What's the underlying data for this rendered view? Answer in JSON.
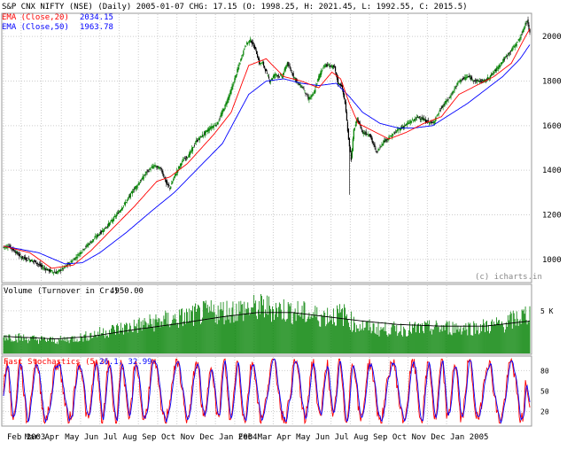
{
  "chart_data": {
    "type": "line",
    "header": {
      "title": "S&P CNX NIFTY (NSE) (Daily) 2005-01-07 CHG: 17.15 (O: 1998.25, H: 2021.45, L: 1992.55, C: 2015.5)",
      "ema20_label": "EMA (Close,20)",
      "ema20_value": "2034.15",
      "ema50_label": "EMA (Close,50)",
      "ema50_value": "1963.78"
    },
    "watermark": "(c) icharts.in",
    "colors": {
      "up": "#008000",
      "down": "#000000",
      "ema20": "#ff0000",
      "ema50": "#0000ff",
      "volume": "#008000",
      "volume_avg": "#000000",
      "stoch_k": "#ff0000",
      "stoch_d": "#0000ff",
      "grid": "#cccccc",
      "label_red": "#ff0000",
      "label_blue": "#0000ff"
    },
    "price": {
      "ylim": [
        900,
        2100
      ],
      "ticks": [
        "2000",
        "1800",
        "1600",
        "1400",
        "1200",
        "1000"
      ],
      "tick_values": [
        2000,
        1800,
        1600,
        1400,
        1200,
        1000
      ],
      "anchors_close": [
        [
          0,
          1055
        ],
        [
          6,
          1060
        ],
        [
          12,
          1040
        ],
        [
          20,
          1010
        ],
        [
          28,
          1000
        ],
        [
          36,
          990
        ],
        [
          44,
          965
        ],
        [
          52,
          950
        ],
        [
          60,
          940
        ],
        [
          68,
          960
        ],
        [
          76,
          985
        ],
        [
          84,
          1015
        ],
        [
          92,
          1050
        ],
        [
          100,
          1080
        ],
        [
          108,
          1110
        ],
        [
          116,
          1140
        ],
        [
          124,
          1175
        ],
        [
          132,
          1215
        ],
        [
          140,
          1260
        ],
        [
          148,
          1310
        ],
        [
          156,
          1350
        ],
        [
          164,
          1395
        ],
        [
          172,
          1420
        ],
        [
          180,
          1405
        ],
        [
          186,
          1340
        ],
        [
          190,
          1320
        ],
        [
          196,
          1380
        ],
        [
          204,
          1440
        ],
        [
          212,
          1470
        ],
        [
          220,
          1530
        ],
        [
          228,
          1560
        ],
        [
          236,
          1590
        ],
        [
          244,
          1610
        ],
        [
          252,
          1680
        ],
        [
          260,
          1760
        ],
        [
          268,
          1860
        ],
        [
          276,
          1960
        ],
        [
          282,
          1985
        ],
        [
          288,
          1940
        ],
        [
          292,
          1880
        ],
        [
          296,
          1880
        ],
        [
          300,
          1840
        ],
        [
          304,
          1800
        ],
        [
          310,
          1830
        ],
        [
          318,
          1820
        ],
        [
          324,
          1880
        ],
        [
          330,
          1830
        ],
        [
          336,
          1790
        ],
        [
          342,
          1770
        ],
        [
          348,
          1720
        ],
        [
          354,
          1740
        ],
        [
          360,
          1820
        ],
        [
          366,
          1870
        ],
        [
          372,
          1870
        ],
        [
          378,
          1860
        ],
        [
          382,
          1790
        ],
        [
          386,
          1780
        ],
        [
          390,
          1700
        ],
        [
          394,
          1540
        ],
        [
          397,
          1450
        ],
        [
          400,
          1580
        ],
        [
          404,
          1630
        ],
        [
          410,
          1570
        ],
        [
          418,
          1560
        ],
        [
          426,
          1480
        ],
        [
          434,
          1530
        ],
        [
          442,
          1550
        ],
        [
          450,
          1580
        ],
        [
          458,
          1600
        ],
        [
          466,
          1620
        ],
        [
          474,
          1640
        ],
        [
          482,
          1620
        ],
        [
          490,
          1610
        ],
        [
          500,
          1680
        ],
        [
          510,
          1730
        ],
        [
          520,
          1800
        ],
        [
          530,
          1820
        ],
        [
          540,
          1800
        ],
        [
          550,
          1800
        ],
        [
          560,
          1840
        ],
        [
          570,
          1890
        ],
        [
          578,
          1930
        ],
        [
          586,
          1970
        ],
        [
          592,
          2010
        ],
        [
          596,
          2060
        ],
        [
          598,
          2070
        ],
        [
          601,
          2015
        ]
      ],
      "anchors_ema20": [
        [
          0,
          1060
        ],
        [
          30,
          1030
        ],
        [
          55,
          960
        ],
        [
          80,
          975
        ],
        [
          100,
          1040
        ],
        [
          120,
          1120
        ],
        [
          150,
          1240
        ],
        [
          175,
          1350
        ],
        [
          190,
          1370
        ],
        [
          210,
          1430
        ],
        [
          240,
          1560
        ],
        [
          260,
          1660
        ],
        [
          280,
          1870
        ],
        [
          300,
          1900
        ],
        [
          320,
          1820
        ],
        [
          340,
          1800
        ],
        [
          360,
          1770
        ],
        [
          375,
          1840
        ],
        [
          385,
          1810
        ],
        [
          395,
          1700
        ],
        [
          405,
          1610
        ],
        [
          420,
          1580
        ],
        [
          440,
          1540
        ],
        [
          460,
          1570
        ],
        [
          480,
          1610
        ],
        [
          500,
          1640
        ],
        [
          520,
          1740
        ],
        [
          540,
          1780
        ],
        [
          560,
          1820
        ],
        [
          580,
          1880
        ],
        [
          596,
          2000
        ],
        [
          601,
          2034
        ]
      ],
      "anchors_ema50": [
        [
          0,
          1060
        ],
        [
          40,
          1030
        ],
        [
          70,
          980
        ],
        [
          90,
          985
        ],
        [
          110,
          1030
        ],
        [
          140,
          1120
        ],
        [
          170,
          1220
        ],
        [
          195,
          1300
        ],
        [
          220,
          1400
        ],
        [
          250,
          1520
        ],
        [
          280,
          1740
        ],
        [
          300,
          1800
        ],
        [
          320,
          1810
        ],
        [
          340,
          1790
        ],
        [
          360,
          1780
        ],
        [
          380,
          1790
        ],
        [
          395,
          1730
        ],
        [
          410,
          1660
        ],
        [
          430,
          1610
        ],
        [
          450,
          1590
        ],
        [
          470,
          1590
        ],
        [
          490,
          1600
        ],
        [
          510,
          1650
        ],
        [
          530,
          1700
        ],
        [
          550,
          1760
        ],
        [
          570,
          1820
        ],
        [
          590,
          1900
        ],
        [
          601,
          1963
        ]
      ]
    },
    "volume": {
      "label": "Volume (Turnover in Cr.)",
      "value": "4950.00",
      "ylim": [
        0,
        8
      ],
      "tick_label": "5 K",
      "tick_value": 5,
      "anchors": [
        [
          0,
          2.2
        ],
        [
          30,
          1.8
        ],
        [
          60,
          1.6
        ],
        [
          90,
          2.0
        ],
        [
          120,
          2.8
        ],
        [
          150,
          3.4
        ],
        [
          180,
          4.0
        ],
        [
          200,
          4.3
        ],
        [
          230,
          5.0
        ],
        [
          260,
          5.3
        ],
        [
          280,
          5.5
        ],
        [
          300,
          5.7
        ],
        [
          330,
          5.2
        ],
        [
          360,
          4.6
        ],
        [
          390,
          4.8
        ],
        [
          400,
          3.6
        ],
        [
          430,
          3.0
        ],
        [
          460,
          3.0
        ],
        [
          500,
          3.2
        ],
        [
          540,
          3.2
        ],
        [
          570,
          3.6
        ],
        [
          601,
          4.95
        ]
      ],
      "avg_anchors": [
        [
          0,
          2.0
        ],
        [
          60,
          1.7
        ],
        [
          100,
          2.0
        ],
        [
          150,
          2.8
        ],
        [
          200,
          3.5
        ],
        [
          250,
          4.3
        ],
        [
          290,
          4.8
        ],
        [
          330,
          4.8
        ],
        [
          370,
          4.3
        ],
        [
          410,
          3.8
        ],
        [
          450,
          3.4
        ],
        [
          500,
          3.2
        ],
        [
          550,
          3.2
        ],
        [
          601,
          3.8
        ]
      ]
    },
    "stochastic": {
      "label": "Fast Stochastics (5,3)",
      "values": "26.1, 32.99",
      "ylim": [
        0,
        100
      ],
      "ticks": [
        "80",
        "50",
        "20"
      ],
      "tick_values": [
        80,
        50,
        20
      ]
    },
    "x_axis": {
      "start": "2003-02-03",
      "end": "2005-01-07",
      "tick_labels": [
        "Feb 2003",
        "Mar",
        "Apr",
        "May",
        "Jun",
        "Jul",
        "Aug",
        "Sep",
        "Oct",
        "Nov",
        "Dec",
        "Jan 2004",
        "Feb",
        "Mar",
        "Apr",
        "May",
        "Jun",
        "Jul",
        "Aug",
        "Sep",
        "Oct",
        "Nov",
        "Dec",
        "Jan 2005"
      ],
      "tick_index": [
        0,
        20,
        43,
        66,
        88,
        110,
        132,
        154,
        176,
        198,
        220,
        242,
        264,
        286,
        308,
        330,
        352,
        374,
        396,
        418,
        440,
        462,
        484,
        506
      ]
    },
    "grid": true
  }
}
